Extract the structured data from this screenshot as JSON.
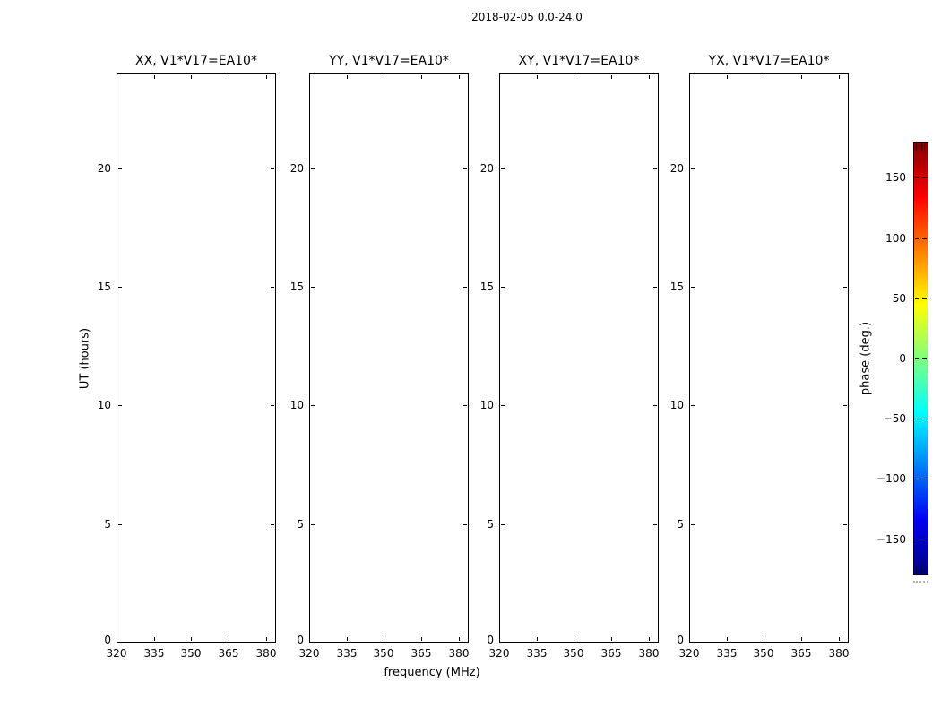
{
  "chart_data": {
    "type": "heatmap",
    "title": "2018-02-05 0.0-24.0",
    "xlabel": "frequency (MHz)",
    "ylabel": "UT (hours)",
    "subplots": [
      {
        "title": "XX, V1*V17=EA10*",
        "values": []
      },
      {
        "title": "YY, V1*V17=EA10*",
        "values": []
      },
      {
        "title": "XY, V1*V17=EA10*",
        "values": []
      },
      {
        "title": "YX, V1*V17=EA10*",
        "values": []
      }
    ],
    "note": "all four panels are blank (no data rendered inside the axes)",
    "xlim": [
      320,
      384
    ],
    "ylim": [
      0,
      24
    ],
    "xticks": [
      320,
      335,
      350,
      365,
      380
    ],
    "xtick_labels": [
      "320",
      "335",
      "350",
      "365",
      "380"
    ],
    "yticks": [
      0,
      5,
      10,
      15,
      20
    ],
    "ytick_labels": [
      "0",
      "5",
      "10",
      "15",
      "20"
    ],
    "grid": false,
    "colorbar": {
      "label": "phase (deg.)",
      "ticks": [
        -150,
        -100,
        -50,
        0,
        50,
        100,
        150
      ],
      "tick_labels": [
        "−150",
        "−100",
        "−50",
        "0",
        "50",
        "100",
        "150"
      ],
      "value_range": [
        -180,
        180
      ],
      "colormap": "jet",
      "gradient_stops": [
        {
          "pos": 0.0,
          "color": "#000080"
        },
        {
          "pos": 0.125,
          "color": "#0000f1"
        },
        {
          "pos": 0.375,
          "color": "#00ffff"
        },
        {
          "pos": 0.625,
          "color": "#ffff00"
        },
        {
          "pos": 0.875,
          "color": "#ff0000"
        },
        {
          "pos": 1.0,
          "color": "#800000"
        }
      ]
    }
  }
}
